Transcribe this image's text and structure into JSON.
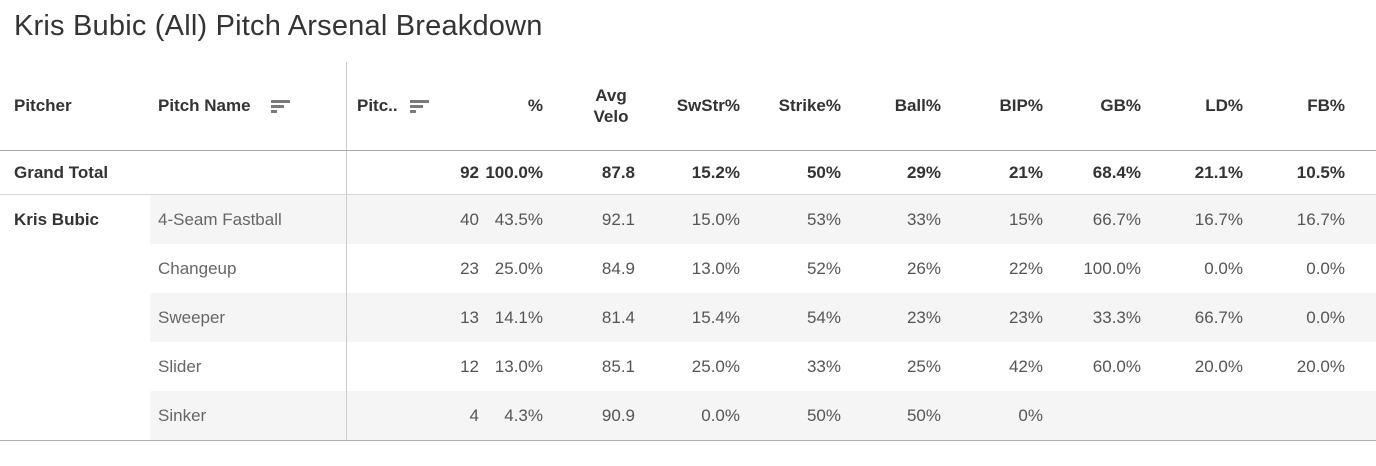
{
  "title": "Kris Bubic (All) Pitch Arsenal Breakdown",
  "colors": {
    "row_band": "#f5f5f5",
    "header_text": "#333333",
    "value_text": "#555555",
    "divider": "#cccccc",
    "sort_icon": "#7a7a7a"
  },
  "icons": {
    "pitch_name_sort": "sort-descending",
    "pitches_sort": "sort-descending"
  },
  "table": {
    "header": {
      "pitcher": "Pitcher",
      "pitch_name": "Pitch Name",
      "stats": [
        "Pitc..",
        "%",
        "Avg Velo",
        "SwStr%",
        "Strike%",
        "Ball%",
        "BIP%",
        "GB%",
        "LD%",
        "FB%"
      ]
    },
    "grand_total": {
      "label": "Grand Total",
      "values": [
        "92",
        "100.0%",
        "87.8",
        "15.2%",
        "50%",
        "29%",
        "21%",
        "68.4%",
        "21.1%",
        "10.5%"
      ]
    },
    "pitcher": "Kris Bubic",
    "rows": [
      {
        "pitch": "4-Seam Fastball",
        "values": [
          "40",
          "43.5%",
          "92.1",
          "15.0%",
          "53%",
          "33%",
          "15%",
          "66.7%",
          "16.7%",
          "16.7%"
        ]
      },
      {
        "pitch": "Changeup",
        "values": [
          "23",
          "25.0%",
          "84.9",
          "13.0%",
          "52%",
          "26%",
          "22%",
          "100.0%",
          "0.0%",
          "0.0%"
        ]
      },
      {
        "pitch": "Sweeper",
        "values": [
          "13",
          "14.1%",
          "81.4",
          "15.4%",
          "54%",
          "23%",
          "23%",
          "33.3%",
          "66.7%",
          "0.0%"
        ]
      },
      {
        "pitch": "Slider",
        "values": [
          "12",
          "13.0%",
          "85.1",
          "25.0%",
          "33%",
          "25%",
          "42%",
          "60.0%",
          "20.0%",
          "20.0%"
        ]
      },
      {
        "pitch": "Sinker",
        "values": [
          "4",
          "4.3%",
          "90.9",
          "0.0%",
          "50%",
          "50%",
          "0%",
          "",
          "",
          ""
        ]
      }
    ]
  },
  "chart_data": {
    "type": "table",
    "title": "Kris Bubic (All) Pitch Arsenal Breakdown",
    "columns": [
      "Pitcher",
      "Pitch Name",
      "Pitches",
      "%",
      "Avg Velo",
      "SwStr%",
      "Strike%",
      "Ball%",
      "BIP%",
      "GB%",
      "LD%",
      "FB%"
    ],
    "rows": [
      [
        "Grand Total",
        "",
        92,
        "100.0%",
        87.8,
        "15.2%",
        "50%",
        "29%",
        "21%",
        "68.4%",
        "21.1%",
        "10.5%"
      ],
      [
        "Kris Bubic",
        "4-Seam Fastball",
        40,
        "43.5%",
        92.1,
        "15.0%",
        "53%",
        "33%",
        "15%",
        "66.7%",
        "16.7%",
        "16.7%"
      ],
      [
        "Kris Bubic",
        "Changeup",
        23,
        "25.0%",
        84.9,
        "13.0%",
        "52%",
        "26%",
        "22%",
        "100.0%",
        "0.0%",
        "0.0%"
      ],
      [
        "Kris Bubic",
        "Sweeper",
        13,
        "14.1%",
        81.4,
        "15.4%",
        "54%",
        "23%",
        "23%",
        "33.3%",
        "66.7%",
        "0.0%"
      ],
      [
        "Kris Bubic",
        "Slider",
        12,
        "13.0%",
        85.1,
        "25.0%",
        "33%",
        "25%",
        "42%",
        "60.0%",
        "20.0%",
        "20.0%"
      ],
      [
        "Kris Bubic",
        "Sinker",
        4,
        "4.3%",
        90.9,
        "0.0%",
        "50%",
        "50%",
        "0%",
        "",
        "",
        ""
      ]
    ]
  }
}
